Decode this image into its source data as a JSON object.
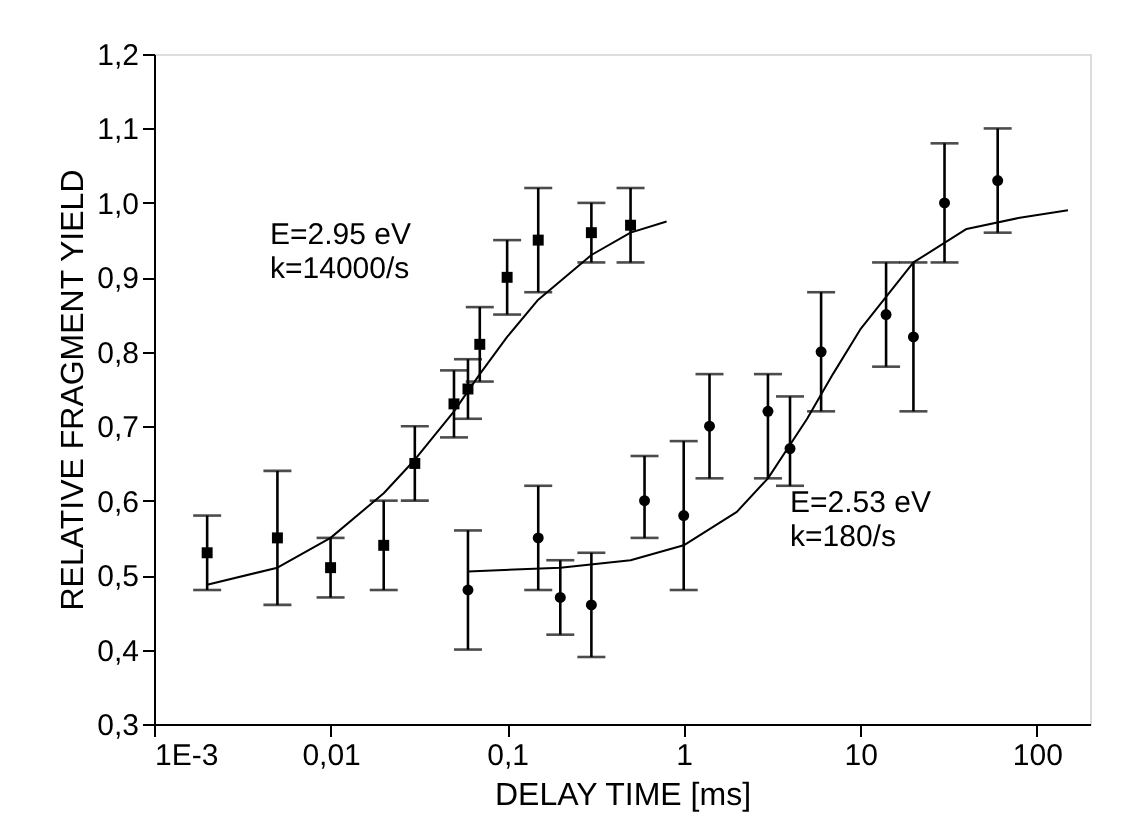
{
  "chart_data": {
    "type": "scatter",
    "xlabel": "DELAY TIME [ms]",
    "ylabel": "RELATIVE FRAGMENT YIELD",
    "log": "x",
    "grid": false,
    "legend": false,
    "xlim": [
      0.001,
      200
    ],
    "xticks": [
      {
        "value": 0.001,
        "label": "1E-3"
      },
      {
        "value": 0.01,
        "label": "0,01"
      },
      {
        "value": 0.1,
        "label": "0,1"
      },
      1,
      10,
      100
    ],
    "ylim": [
      0.3,
      1.2
    ],
    "yticks": [
      {
        "value": 0.3,
        "label": "0,3"
      },
      {
        "value": 0.4,
        "label": "0,4"
      },
      {
        "value": 0.5,
        "label": "0,5"
      },
      {
        "value": 0.6,
        "label": "0,6"
      },
      {
        "value": 0.7,
        "label": "0,7"
      },
      {
        "value": 0.8,
        "label": "0,8"
      },
      {
        "value": 0.9,
        "label": "0,9"
      },
      {
        "value": 1.0,
        "label": "1,0"
      },
      {
        "value": 1.1,
        "label": "1,1"
      },
      {
        "value": 1.2,
        "label": "1,2"
      }
    ],
    "annotations": [
      "E=2.95 eV\nk=14000/s",
      "E=2.53 eV\nk=180/s"
    ],
    "series": [
      {
        "marker": "square",
        "color": "#000000",
        "x": [
          0.002,
          0.005,
          0.01,
          0.02,
          0.03,
          0.05,
          0.06,
          0.07,
          0.1,
          0.15,
          0.3,
          0.5
        ],
        "values": [
          0.53,
          0.55,
          0.51,
          0.54,
          0.65,
          0.73,
          0.75,
          0.81,
          0.9,
          0.95,
          0.96,
          0.97
        ],
        "errors": [
          [
            0.48,
            0.58
          ],
          [
            0.46,
            0.64
          ],
          [
            0.47,
            0.55
          ],
          [
            0.48,
            0.6
          ],
          [
            0.6,
            0.7
          ],
          [
            0.685,
            0.775
          ],
          [
            0.71,
            0.79
          ],
          [
            0.76,
            0.86
          ],
          [
            0.85,
            0.95
          ],
          [
            0.88,
            1.02
          ],
          [
            0.92,
            1.0
          ],
          [
            0.92,
            1.02
          ]
        ]
      },
      {
        "marker": "circle",
        "color": "#000000",
        "x": [
          0.06,
          0.15,
          0.2,
          0.3,
          0.6,
          1,
          1.4,
          3,
          4,
          6,
          14,
          20,
          30,
          60
        ],
        "values": [
          0.48,
          0.55,
          0.47,
          0.46,
          0.6,
          0.58,
          0.7,
          0.72,
          0.67,
          0.8,
          0.85,
          0.82,
          1.0,
          1.03
        ],
        "errors": [
          [
            0.4,
            0.56
          ],
          [
            0.48,
            0.62
          ],
          [
            0.42,
            0.52
          ],
          [
            0.39,
            0.53
          ],
          [
            0.55,
            0.66
          ],
          [
            0.48,
            0.68
          ],
          [
            0.63,
            0.77
          ],
          [
            0.63,
            0.77
          ],
          [
            0.62,
            0.74
          ],
          [
            0.72,
            0.88
          ],
          [
            0.78,
            0.92
          ],
          [
            0.72,
            0.92
          ],
          [
            0.92,
            1.08
          ],
          [
            0.96,
            1.1
          ]
        ]
      },
      {
        "type": "line",
        "color": "#000000",
        "line_style": "solid",
        "x": [
          0.002,
          0.005,
          0.01,
          0.02,
          0.03,
          0.05,
          0.07,
          0.1,
          0.15,
          0.3,
          0.5,
          0.8
        ],
        "values": [
          0.487,
          0.51,
          0.55,
          0.61,
          0.655,
          0.72,
          0.77,
          0.82,
          0.87,
          0.93,
          0.96,
          0.975
        ]
      },
      {
        "type": "line",
        "color": "#000000",
        "line_style": "solid",
        "x": [
          0.06,
          0.2,
          0.5,
          1,
          2,
          3,
          5,
          7,
          10,
          20,
          40,
          80,
          150
        ],
        "values": [
          0.505,
          0.51,
          0.52,
          0.54,
          0.585,
          0.63,
          0.71,
          0.77,
          0.83,
          0.92,
          0.965,
          0.98,
          0.99
        ]
      }
    ]
  }
}
